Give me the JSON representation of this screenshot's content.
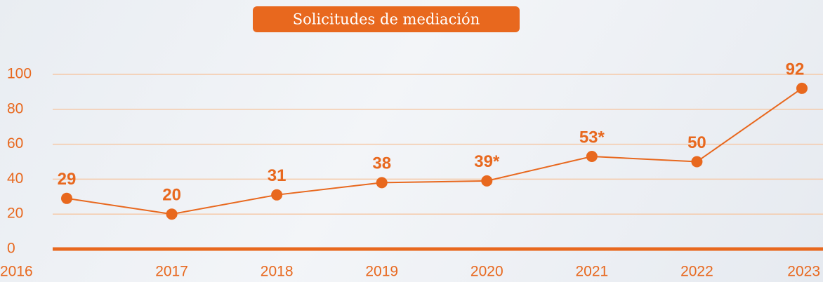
{
  "chart_data": {
    "type": "line",
    "title": "Solicitudes de mediación",
    "categories": [
      "2016",
      "2017",
      "2018",
      "2019",
      "2020",
      "2021",
      "2022",
      "2023"
    ],
    "values": [
      29,
      20,
      31,
      38,
      39,
      53,
      50,
      92
    ],
    "value_labels": [
      "29",
      "20",
      "31",
      "38",
      "39*",
      "53*",
      "50",
      "92"
    ],
    "color": "#e8681e",
    "ylim": [
      0,
      100
    ],
    "yticks": [
      0,
      20,
      40,
      60,
      80,
      100
    ],
    "grid": true
  }
}
